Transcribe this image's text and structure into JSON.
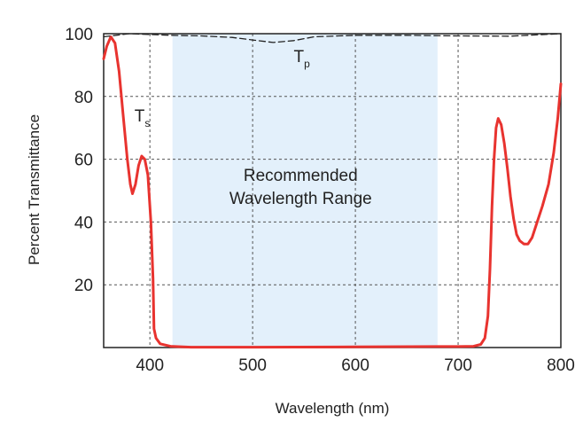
{
  "chart_data": {
    "type": "line",
    "xlabel": "Wavelength (nm)",
    "ylabel": "Percent Transmittance",
    "xlim": [
      355,
      800
    ],
    "ylim": [
      0,
      100
    ],
    "x_ticks": [
      400,
      500,
      600,
      700,
      800
    ],
    "y_ticks": [
      20,
      40,
      60,
      80,
      100
    ],
    "grid": true,
    "highlight_region": {
      "x_range": [
        422,
        680
      ],
      "label_line1": "Recommended",
      "label_line2": "Wavelength Range",
      "color": "#e3f0fb"
    },
    "series": [
      {
        "label_main": "T",
        "label_sub": "s",
        "color": "#e8332f",
        "style": "solid",
        "label_at": [
          385,
          72
        ],
        "points": [
          [
            355,
            92
          ],
          [
            358,
            96
          ],
          [
            362,
            99
          ],
          [
            366,
            97
          ],
          [
            370,
            88
          ],
          [
            374,
            74
          ],
          [
            378,
            60
          ],
          [
            381,
            52
          ],
          [
            383,
            49
          ],
          [
            386,
            52
          ],
          [
            389,
            58
          ],
          [
            392,
            61
          ],
          [
            395,
            60
          ],
          [
            398,
            55
          ],
          [
            401,
            40
          ],
          [
            403,
            22
          ],
          [
            404,
            6
          ],
          [
            406,
            3
          ],
          [
            410,
            1.2
          ],
          [
            420,
            0.4
          ],
          [
            440,
            0.1
          ],
          [
            500,
            0.1
          ],
          [
            600,
            0.2
          ],
          [
            680,
            0.3
          ],
          [
            700,
            0.3
          ],
          [
            715,
            0.4
          ],
          [
            722,
            1
          ],
          [
            726,
            3
          ],
          [
            729,
            10
          ],
          [
            731,
            25
          ],
          [
            733,
            45
          ],
          [
            735,
            60
          ],
          [
            737,
            70
          ],
          [
            739,
            73
          ],
          [
            742,
            71
          ],
          [
            745,
            65
          ],
          [
            748,
            57
          ],
          [
            751,
            48
          ],
          [
            754,
            41
          ],
          [
            757,
            36
          ],
          [
            760,
            34
          ],
          [
            764,
            33
          ],
          [
            768,
            33
          ],
          [
            772,
            35
          ],
          [
            777,
            40
          ],
          [
            782,
            45
          ],
          [
            788,
            52
          ],
          [
            793,
            62
          ],
          [
            797,
            73
          ],
          [
            800,
            84
          ]
        ]
      },
      {
        "label_main": "T",
        "label_sub": "p",
        "color": "#222222",
        "style": "dashed",
        "label_at": [
          540,
          91
        ],
        "points": [
          [
            355,
            99
          ],
          [
            380,
            100
          ],
          [
            420,
            99.5
          ],
          [
            450,
            99.3
          ],
          [
            480,
            98.8
          ],
          [
            500,
            98
          ],
          [
            520,
            97.2
          ],
          [
            540,
            97.8
          ],
          [
            560,
            99
          ],
          [
            600,
            99.5
          ],
          [
            650,
            99.5
          ],
          [
            700,
            99.3
          ],
          [
            750,
            99.2
          ],
          [
            800,
            100
          ]
        ]
      }
    ]
  }
}
